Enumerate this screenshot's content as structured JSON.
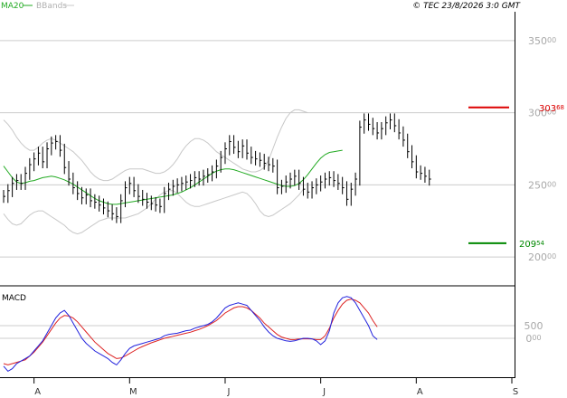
{
  "header": {
    "ma_label": "MA20",
    "bb_label": "BBands",
    "copyright": "© TEC 23/8/2026 3:0 GMT"
  },
  "colors": {
    "price": "#000000",
    "ma": "#22aa22",
    "bbands": "#c8c8c8",
    "macd": "#2222dd",
    "signal": "#dd2222",
    "resistance": "#dd0000",
    "support": "#008800",
    "grid": "#cccccc",
    "axis_text": "#a8a8a8"
  },
  "chart_data": [
    {
      "type": "ohlc",
      "ylim": [
        18000,
        37000
      ],
      "y_ticks": [
        {
          "value": 35000,
          "main": "350",
          "small": "00"
        },
        {
          "value": 30000,
          "main": "300",
          "small": "00"
        },
        {
          "value": 25000,
          "main": "250",
          "small": "00"
        },
        {
          "value": 20000,
          "main": "200",
          "small": "00"
        }
      ],
      "x_ticks": [
        "A",
        "M",
        "J",
        "J",
        "A",
        "S"
      ],
      "x_tick_index": [
        7,
        29,
        51,
        73,
        95,
        117
      ],
      "n_slots": 117,
      "closes": [
        24200,
        24600,
        25100,
        25300,
        25100,
        25800,
        26400,
        26800,
        27200,
        26600,
        27500,
        27900,
        28000,
        27400,
        26200,
        25400,
        24800,
        24400,
        24100,
        24300,
        23900,
        23800,
        23600,
        23400,
        23200,
        23000,
        22800,
        23900,
        24800,
        25100,
        24600,
        24200,
        24000,
        23800,
        23700,
        23600,
        23500,
        24400,
        24700,
        24900,
        25000,
        25100,
        25200,
        25300,
        25500,
        25400,
        25600,
        25700,
        25900,
        26300,
        26900,
        27500,
        28000,
        27600,
        27300,
        27700,
        27200,
        26900,
        26800,
        26700,
        26500,
        26400,
        26300,
        24800,
        24900,
        25200,
        25400,
        25600,
        25100,
        24700,
        24500,
        24800,
        25000,
        25200,
        25400,
        25500,
        25300,
        25100,
        24800,
        24000,
        24700,
        25400,
        29000,
        29500,
        29200,
        28900,
        28600,
        28900,
        29300,
        29500,
        29100,
        28600,
        28100,
        27300,
        26600,
        25900,
        25800,
        25600,
        25400
      ],
      "ma20": [
        26300,
        25900,
        25500,
        25200,
        25100,
        25150,
        25250,
        25300,
        25400,
        25500,
        25550,
        25600,
        25550,
        25450,
        25350,
        25200,
        25050,
        24850,
        24650,
        24450,
        24250,
        24050,
        23900,
        23800,
        23700,
        23650,
        23650,
        23700,
        23750,
        23800,
        23850,
        23900,
        23950,
        24000,
        24050,
        24100,
        24150,
        24200,
        24250,
        24300,
        24400,
        24500,
        24650,
        24800,
        25000,
        25200,
        25400,
        25600,
        25800,
        25950,
        26050,
        26100,
        26100,
        26050,
        25950,
        25850,
        25750,
        25650,
        25550,
        25450,
        25350,
        25250,
        25150,
        25050,
        24950,
        24900,
        24900,
        24950,
        25100,
        25350,
        25700,
        26100,
        26500,
        26850,
        27100,
        27250,
        27300,
        27350,
        27400
      ],
      "bb_upper": [
        29500,
        29200,
        28800,
        28300,
        27900,
        27600,
        27400,
        27400,
        27600,
        27900,
        28100,
        28200,
        28100,
        27900,
        27700,
        27500,
        27300,
        27000,
        26700,
        26300,
        25900,
        25600,
        25400,
        25300,
        25300,
        25400,
        25600,
        25800,
        26000,
        26100,
        26100,
        26100,
        26100,
        26000,
        25900,
        25800,
        25800,
        25900,
        26100,
        26400,
        26800,
        27300,
        27700,
        28000,
        28200,
        28200,
        28100,
        27900,
        27600,
        27300,
        27100,
        26900,
        26700,
        26500,
        26300,
        26100,
        26000,
        25900,
        25900,
        26000,
        26200,
        26700,
        27500,
        28300,
        29000,
        29600,
        30000,
        30200,
        30200,
        30100,
        30000
      ],
      "bb_lower": [
        23000,
        22600,
        22300,
        22200,
        22300,
        22600,
        22900,
        23100,
        23200,
        23200,
        23000,
        22800,
        22600,
        22400,
        22200,
        21900,
        21700,
        21600,
        21700,
        21900,
        22100,
        22300,
        22500,
        22600,
        22700,
        22700,
        22700,
        22700,
        22700,
        22800,
        22900,
        23000,
        23200,
        23400,
        23700,
        24000,
        24300,
        24500,
        24600,
        24600,
        24400,
        24100,
        23800,
        23600,
        23500,
        23500,
        23600,
        23700,
        23800,
        23900,
        24000,
        24100,
        24200,
        24300,
        24400,
        24500,
        24400,
        24100,
        23700,
        23200,
        22900,
        22800,
        22900,
        23100,
        23300,
        23500,
        23700,
        24000,
        24300,
        24700
      ],
      "resistance": {
        "value": 30368,
        "main": "303",
        "small": "68"
      },
      "support": {
        "value": 20954,
        "main": "209",
        "small": "54"
      }
    },
    {
      "type": "line",
      "title": "MACD",
      "ylim": [
        -1500,
        2000
      ],
      "y_ticks": [
        {
          "value": 500,
          "main": "500",
          "small": ""
        },
        {
          "value": 0,
          "main": "0",
          "small": "00"
        }
      ],
      "series": [
        {
          "name": "macd",
          "values": [
            -1100,
            -1300,
            -1200,
            -1000,
            -900,
            -800,
            -700,
            -500,
            -300,
            -100,
            200,
            500,
            800,
            1000,
            1100,
            900,
            600,
            300,
            0,
            -200,
            -350,
            -500,
            -600,
            -700,
            -800,
            -950,
            -1050,
            -850,
            -600,
            -400,
            -300,
            -250,
            -200,
            -150,
            -100,
            -50,
            0,
            100,
            150,
            180,
            200,
            250,
            300,
            320,
            400,
            450,
            500,
            550,
            650,
            800,
            1000,
            1200,
            1300,
            1350,
            1400,
            1350,
            1300,
            1100,
            900,
            700,
            450,
            250,
            100,
            0,
            -50,
            -100,
            -120,
            -100,
            -50,
            0,
            0,
            -20,
            -100,
            -250,
            -100,
            300,
            1000,
            1400,
            1600,
            1650,
            1600,
            1400,
            1100,
            800,
            500,
            100,
            -50
          ]
        },
        {
          "name": "signal",
          "values": [
            -1000,
            -1050,
            -1000,
            -950,
            -900,
            -850,
            -700,
            -550,
            -350,
            -150,
            100,
            350,
            600,
            800,
            900,
            880,
            800,
            650,
            450,
            250,
            50,
            -150,
            -300,
            -450,
            -600,
            -700,
            -800,
            -780,
            -700,
            -600,
            -500,
            -400,
            -320,
            -250,
            -180,
            -120,
            -60,
            0,
            40,
            80,
            120,
            160,
            200,
            240,
            300,
            350,
            420,
            500,
            600,
            700,
            850,
            1000,
            1100,
            1200,
            1250,
            1250,
            1200,
            1100,
            950,
            800,
            600,
            450,
            300,
            150,
            50,
            0,
            -50,
            -50,
            -30,
            -20,
            -20,
            -30,
            -50,
            -50,
            100,
            400,
            800,
            1100,
            1350,
            1500,
            1550,
            1500,
            1400,
            1200,
            1000,
            700,
            450
          ]
        }
      ]
    }
  ]
}
